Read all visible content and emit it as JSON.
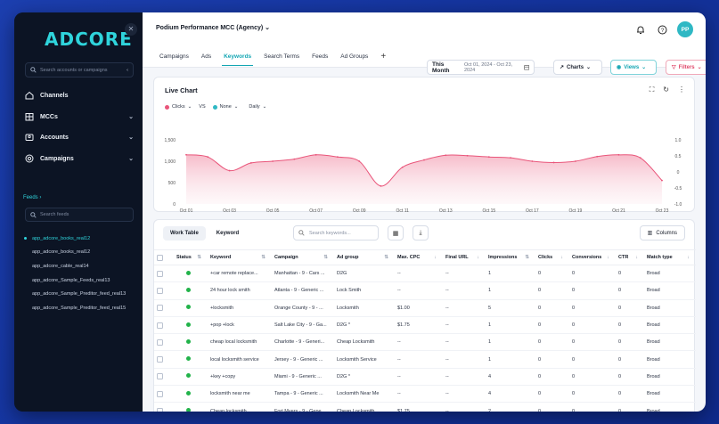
{
  "sidebar": {
    "logo": "ADCORE",
    "search_placeholder": "Search accounts or campaigns",
    "nav": [
      {
        "label": "Channels",
        "icon": "home-icon"
      },
      {
        "label": "MCCs",
        "icon": "building-icon"
      },
      {
        "label": "Accounts",
        "icon": "id-card-icon"
      },
      {
        "label": "Campaigns",
        "icon": "target-icon"
      }
    ],
    "feeds_label": "Feeds",
    "feeds_search_placeholder": "Search feeds",
    "feeds": [
      "app_adcore_books_real12",
      "app_adcore_books_real12",
      "app_adcore_cable_real14",
      "app_adcore_Sample_Feeds_real13",
      "app_adcore_Sample_Preditor_feed_real13",
      "app_adcore_Sample_Preditor_feed_real15"
    ]
  },
  "header": {
    "account": "Podium Performance MCC (Agency)",
    "avatar": "PP"
  },
  "tabs": [
    "Campaigns",
    "Ads",
    "Keywords",
    "Search Terms",
    "Feeds",
    "Ad Groups"
  ],
  "active_tab": "Keywords",
  "date": {
    "preset": "This Month",
    "range": "Oct 01, 2024 - Oct 23, 2024"
  },
  "buttons": {
    "charts": "Charts",
    "views": "Views",
    "filters": "Filters"
  },
  "chart": {
    "title": "Live Chart",
    "metric1": "Clicks",
    "vs": "VS",
    "metric2": "None",
    "granularity": "Daily",
    "metric1_color": "#e9557a",
    "metric2_color": "#2fb8c4"
  },
  "chart_data": {
    "type": "area",
    "x": [
      "Oct 01",
      "Oct 02",
      "Oct 03",
      "Oct 04",
      "Oct 05",
      "Oct 06",
      "Oct 07",
      "Oct 08",
      "Oct 09",
      "Oct 10",
      "Oct 11",
      "Oct 12",
      "Oct 13",
      "Oct 14",
      "Oct 15",
      "Oct 16",
      "Oct 17",
      "Oct 18",
      "Oct 19",
      "Oct 20",
      "Oct 21",
      "Oct 22",
      "Oct 23"
    ],
    "x_tick_labels": [
      "Oct 01",
      "Oct 03",
      "Oct 05",
      "Oct 07",
      "Oct 09",
      "Oct 11",
      "Oct 13",
      "Oct 15",
      "Oct 17",
      "Oct 19",
      "Oct 21",
      "Oct 23"
    ],
    "series": [
      {
        "name": "Clicks",
        "values": [
          1150,
          1100,
          780,
          960,
          1000,
          1050,
          1150,
          1100,
          1000,
          420,
          860,
          1030,
          1140,
          1130,
          1100,
          1080,
          1000,
          970,
          1000,
          1110,
          1150,
          1080,
          550
        ]
      }
    ],
    "y_ticks": [
      "1,500",
      "1,000",
      "500",
      "0"
    ],
    "y2_ticks": [
      "1.0",
      "0.5",
      "0",
      "-0.5",
      "-1.0"
    ],
    "ylim": [
      0,
      1500
    ],
    "y2lim": [
      -1.0,
      1.0
    ]
  },
  "table": {
    "tabs": [
      "Work Table",
      "Keyword"
    ],
    "search_placeholder": "Search keywords...",
    "columns_label": "Columns",
    "headers": [
      "Status",
      "Keyword",
      "Campaign",
      "Ad group",
      "Max. CPC",
      "Final URL",
      "Impressions",
      "Clicks",
      "Conversions",
      "CTR",
      "Match type"
    ],
    "rows": [
      [
        "+car remote replace...",
        "Manhattan - 9 - Cars ...",
        "D2G",
        "--",
        "--",
        "1",
        "0",
        "0",
        "0",
        "Broad"
      ],
      [
        "24 hour lock smith",
        "Atlanta - 9 - Generic ...",
        "Lock Smith",
        "--",
        "--",
        "1",
        "0",
        "0",
        "0",
        "Broad"
      ],
      [
        "+locksmith",
        "Orange County - 9 - ...",
        "Locksmith",
        "$1.00",
        "--",
        "5",
        "0",
        "0",
        "0",
        "Broad"
      ],
      [
        "+pop +lock",
        "Salt Lake City - 9 - Ga...",
        "D2G *",
        "$1.75",
        "--",
        "1",
        "0",
        "0",
        "0",
        "Broad"
      ],
      [
        "cheap local locksmith",
        "Charlotte - 9 - Generi...",
        "Cheap Locksmith",
        "--",
        "--",
        "1",
        "0",
        "0",
        "0",
        "Broad"
      ],
      [
        "local locksmith service",
        "Jersey - 9 - Generic ...",
        "Locksmith Service",
        "--",
        "--",
        "1",
        "0",
        "0",
        "0",
        "Broad"
      ],
      [
        "+key +copy",
        "Miami - 9 - Generic ...",
        "D2G *",
        "--",
        "--",
        "4",
        "0",
        "0",
        "0",
        "Broad"
      ],
      [
        "locksmith near me",
        "Tampa - 9 - Generic ...",
        "Locksmith Near Me",
        "--",
        "--",
        "4",
        "0",
        "0",
        "0",
        "Broad"
      ],
      [
        "Cheap locksmith",
        "Fort Myers - 9 - Gene...",
        "Cheap Locksmith",
        "$1.75",
        "--",
        "2",
        "0",
        "0",
        "0",
        "Broad"
      ]
    ]
  }
}
